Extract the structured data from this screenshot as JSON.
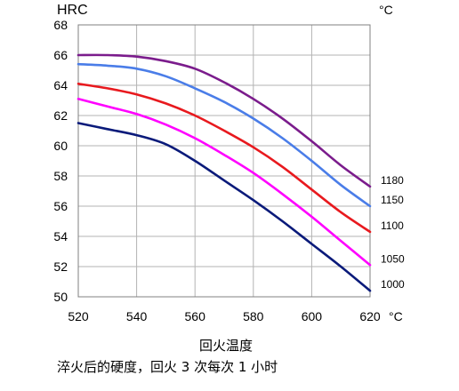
{
  "chart_data": {
    "type": "line",
    "ylabel": "HRC",
    "xlabel": "回火温度",
    "x_unit": "°C",
    "series_unit": "°C",
    "xlim": [
      520,
      620
    ],
    "ylim": [
      50,
      68
    ],
    "xticks": [
      "520",
      "540",
      "560",
      "580",
      "600",
      "620"
    ],
    "yticks": [
      "50",
      "52",
      "54",
      "56",
      "58",
      "60",
      "62",
      "64",
      "66",
      "68"
    ],
    "grid": true,
    "x": [
      520,
      530,
      540,
      550,
      560,
      570,
      580,
      590,
      600,
      610,
      620
    ],
    "series": [
      {
        "name": "1180",
        "color": "#7b1c8c",
        "values": [
          66.0,
          66.0,
          65.9,
          65.6,
          65.1,
          64.2,
          63.1,
          61.8,
          60.3,
          58.7,
          57.3
        ]
      },
      {
        "name": "1150",
        "color": "#4a7de8",
        "values": [
          65.4,
          65.3,
          65.1,
          64.6,
          63.8,
          62.9,
          61.8,
          60.5,
          59.0,
          57.4,
          56.0
        ]
      },
      {
        "name": "1100",
        "color": "#e8191e",
        "values": [
          64.1,
          63.8,
          63.4,
          62.8,
          62.0,
          61.0,
          59.9,
          58.6,
          57.1,
          55.6,
          54.3
        ]
      },
      {
        "name": "1050",
        "color": "#ff00ff",
        "values": [
          63.1,
          62.6,
          62.1,
          61.4,
          60.5,
          59.4,
          58.2,
          56.8,
          55.3,
          53.7,
          52.1
        ]
      },
      {
        "name": "1000",
        "color": "#0a1a7a",
        "values": [
          61.5,
          61.1,
          60.7,
          60.1,
          59.0,
          57.7,
          56.4,
          55.0,
          53.5,
          52.0,
          50.4
        ]
      }
    ]
  },
  "caption": "淬火后的硬度，回火 3 次每次 1 小时"
}
